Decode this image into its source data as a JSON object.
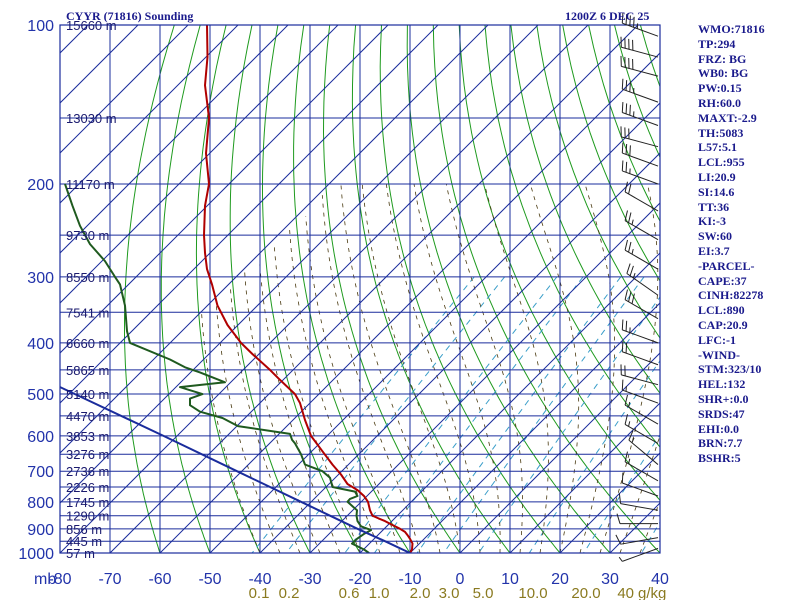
{
  "chart_data": {
    "type": "line",
    "title_left": "CYYR (71816) Sounding",
    "title_right": "1200Z  6 DEC 25",
    "xlabel": "",
    "ylabel": "",
    "y_unit_label": "mb",
    "q_unit_label": "g/kg",
    "pressure_ticks": [
      100,
      200,
      300,
      400,
      500,
      600,
      700,
      800,
      900,
      1000
    ],
    "temperature_ticks": [
      -80,
      -70,
      -60,
      -50,
      -40,
      -30,
      -20,
      -10,
      0,
      10,
      20,
      30,
      40
    ],
    "temperature_tick_labels": [
      "-80",
      "-70",
      "-60",
      "-50",
      "-40",
      "-30",
      "-20",
      "-10",
      "0",
      "10",
      "20",
      "30",
      "40"
    ],
    "mixing_ratio_labels": [
      "0.1",
      "0.2",
      "0.6",
      "1.0",
      "2.0",
      "3.0",
      "5.0",
      "10.0",
      "20.0",
      "40"
    ],
    "ylim": [
      1000,
      100
    ],
    "xlim": [
      -80,
      40
    ],
    "height_labels": [
      {
        "p": 100,
        "text": "15660 m"
      },
      {
        "p": 150,
        "text": "13030 m"
      },
      {
        "p": 200,
        "text": "11170 m"
      },
      {
        "p": 250,
        "text": "9730 m"
      },
      {
        "p": 300,
        "text": "8550 m"
      },
      {
        "p": 350,
        "text": "7541 m"
      },
      {
        "p": 400,
        "text": "6660 m"
      },
      {
        "p": 450,
        "text": "5865 m"
      },
      {
        "p": 500,
        "text": "5140 m"
      },
      {
        "p": 550,
        "text": "4470 m"
      },
      {
        "p": 600,
        "text": "3853 m"
      },
      {
        "p": 650,
        "text": "3276 m"
      },
      {
        "p": 700,
        "text": "2736 m"
      },
      {
        "p": 750,
        "text": "2226 m"
      },
      {
        "p": 800,
        "text": "1745 m"
      },
      {
        "p": 850,
        "text": "1290 m"
      },
      {
        "p": 900,
        "text": "856 m"
      },
      {
        "p": 950,
        "text": "445 m"
      },
      {
        "p": 1000,
        "text": "57 m"
      }
    ],
    "series": [
      {
        "name": "Temperature",
        "color": "#b00000",
        "points": [
          [
            1000,
            -10
          ],
          [
            985,
            -9.6
          ],
          [
            960,
            -9.5
          ],
          [
            940,
            -10
          ],
          [
            925,
            -10.5
          ],
          [
            912,
            -11
          ],
          [
            900,
            -12
          ],
          [
            885,
            -13.5
          ],
          [
            870,
            -15
          ],
          [
            860,
            -16.3
          ],
          [
            850,
            -17.5
          ],
          [
            830,
            -18
          ],
          [
            800,
            -18.4
          ],
          [
            780,
            -19.2
          ],
          [
            760,
            -20.5
          ],
          [
            740,
            -22.5
          ],
          [
            710,
            -23.8
          ],
          [
            680,
            -25.5
          ],
          [
            640,
            -27.6
          ],
          [
            600,
            -29.8
          ],
          [
            560,
            -31
          ],
          [
            520,
            -32
          ],
          [
            500,
            -33
          ],
          [
            470,
            -36
          ],
          [
            450,
            -38
          ],
          [
            420,
            -41.5
          ],
          [
            400,
            -43.8
          ],
          [
            370,
            -46.5
          ],
          [
            340,
            -48.5
          ],
          [
            310,
            -49.6
          ],
          [
            290,
            -50.6
          ],
          [
            270,
            -51
          ],
          [
            250,
            -51.2
          ],
          [
            220,
            -51
          ],
          [
            200,
            -50.2
          ],
          [
            175,
            -50.8
          ],
          [
            150,
            -50.2
          ],
          [
            130,
            -51
          ],
          [
            115,
            -50.5
          ],
          [
            100,
            -50.6
          ]
        ]
      },
      {
        "name": "Dewpoint",
        "color": "#1f5a1f",
        "points": [
          [
            1000,
            -18.2
          ],
          [
            985,
            -19.2
          ],
          [
            960,
            -21.6
          ],
          [
            940,
            -20.6
          ],
          [
            920,
            -19.2
          ],
          [
            905,
            -17.8
          ],
          [
            890,
            -19.8
          ],
          [
            870,
            -20.5
          ],
          [
            850,
            -20.7
          ],
          [
            830,
            -20.6
          ],
          [
            800,
            -22.5
          ],
          [
            790,
            -22
          ],
          [
            780,
            -20.5
          ],
          [
            765,
            -21
          ],
          [
            750,
            -25.5
          ],
          [
            720,
            -26
          ],
          [
            700,
            -27.5
          ],
          [
            680,
            -31
          ],
          [
            650,
            -31.8
          ],
          [
            620,
            -33
          ],
          [
            610,
            -33.6
          ],
          [
            595,
            -34
          ],
          [
            575,
            -44.4
          ],
          [
            555,
            -47.5
          ],
          [
            540,
            -52
          ],
          [
            525,
            -54
          ],
          [
            510,
            -54
          ],
          [
            500,
            -51.5
          ],
          [
            490,
            -54.5
          ],
          [
            485,
            -56
          ],
          [
            475,
            -47
          ],
          [
            455,
            -52
          ],
          [
            445,
            -55
          ],
          [
            430,
            -58
          ],
          [
            400,
            -66
          ],
          [
            380,
            -66.6
          ],
          [
            340,
            -67
          ],
          [
            310,
            -68
          ],
          [
            300,
            -69
          ],
          [
            280,
            -71
          ],
          [
            260,
            -74
          ],
          [
            240,
            -76
          ],
          [
            220,
            -77.5
          ],
          [
            200,
            -79
          ]
        ]
      },
      {
        "name": "Parcel",
        "color": "#1a2c9c",
        "points": [
          [
            1000,
            -10
          ],
          [
            950,
            -15
          ],
          [
            900,
            -20.5
          ],
          [
            850,
            -26
          ],
          [
            800,
            -31.8
          ],
          [
            700,
            -44.6
          ],
          [
            600,
            -59.3
          ],
          [
            500,
            -77
          ],
          [
            440,
            -89.5
          ],
          [
            350,
            -110
          ]
        ]
      }
    ]
  },
  "indices": [
    "WMO:71816",
    "TP:294",
    "FRZ: BG",
    "WB0: BG",
    "PW:0.15",
    "RH:60.0",
    "MAXT:-2.9",
    "TH:5083",
    "L57:5.1",
    "LCL:955",
    "LI:20.9",
    "SI:14.6",
    "TT:36",
    "KI:-3",
    "SW:60",
    "EI:3.7",
    "-PARCEL-",
    "CAPE:37",
    "CINH:82278",
    "LCL:890",
    "CAP:20.9",
    "LFC:-1",
    "-WIND-",
    "STM:323/10",
    "HEL:132",
    "SHR+:0.0",
    "SRDS:47",
    "EHI:0.0",
    "BRN:7.7",
    "BSHR:5"
  ],
  "wind_barbs": [
    {
      "p": 105,
      "dir": 290,
      "spd": 45
    },
    {
      "p": 115,
      "dir": 285,
      "spd": 40
    },
    {
      "p": 125,
      "dir": 285,
      "spd": 40
    },
    {
      "p": 140,
      "dir": 290,
      "spd": 35
    },
    {
      "p": 155,
      "dir": 290,
      "spd": 35
    },
    {
      "p": 170,
      "dir": 285,
      "spd": 30
    },
    {
      "p": 185,
      "dir": 290,
      "spd": 30
    },
    {
      "p": 200,
      "dir": 290,
      "spd": 25
    },
    {
      "p": 225,
      "dir": 300,
      "spd": 20
    },
    {
      "p": 255,
      "dir": 300,
      "spd": 25
    },
    {
      "p": 290,
      "dir": 300,
      "spd": 25
    },
    {
      "p": 325,
      "dir": 305,
      "spd": 25
    },
    {
      "p": 360,
      "dir": 300,
      "spd": 30
    },
    {
      "p": 400,
      "dir": 290,
      "spd": 25
    },
    {
      "p": 440,
      "dir": 290,
      "spd": 20
    },
    {
      "p": 480,
      "dir": 285,
      "spd": 20
    },
    {
      "p": 520,
      "dir": 290,
      "spd": 15
    },
    {
      "p": 570,
      "dir": 300,
      "spd": 15
    },
    {
      "p": 620,
      "dir": 300,
      "spd": 15
    },
    {
      "p": 680,
      "dir": 310,
      "spd": 15
    },
    {
      "p": 730,
      "dir": 300,
      "spd": 15
    },
    {
      "p": 780,
      "dir": 290,
      "spd": 10
    },
    {
      "p": 830,
      "dir": 280,
      "spd": 10
    },
    {
      "p": 880,
      "dir": 270,
      "spd": 10
    },
    {
      "p": 935,
      "dir": 260,
      "spd": 10
    },
    {
      "p": 980,
      "dir": 250,
      "spd": 5
    }
  ],
  "colors": {
    "isobar": "#1a2c9c",
    "isotherm": "#1a2c9c",
    "dry_adiabat": "#1e9a1e",
    "moist_adiabat": "#4a3a10",
    "mixing_ratio": "#3a9ec9",
    "text": "#1a1a8c"
  }
}
